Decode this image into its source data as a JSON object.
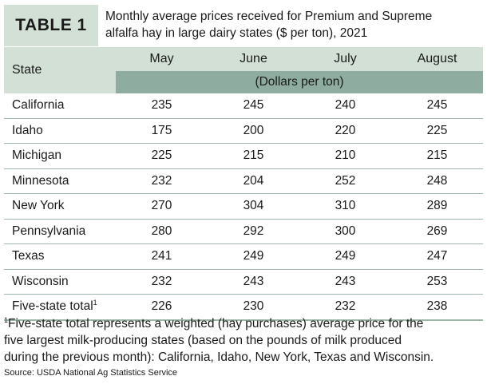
{
  "table_label": "TABLE 1",
  "caption_line1": "Monthly average prices received for Premium and Supreme",
  "caption_line2": "alfalfa hay in large dairy states ($ per ton), 2021",
  "columns": {
    "state": "State",
    "months": [
      "May",
      "June",
      "July",
      "August"
    ],
    "unit_label": "(Dollars per ton)"
  },
  "rows": [
    {
      "state": "California",
      "values": [
        "235",
        "245",
        "240",
        "245"
      ]
    },
    {
      "state": "Idaho",
      "values": [
        "175",
        "200",
        "220",
        "225"
      ]
    },
    {
      "state": "Michigan",
      "values": [
        "225",
        "215",
        "210",
        "215"
      ]
    },
    {
      "state": "Minnesota",
      "values": [
        "232",
        "204",
        "252",
        "248"
      ]
    },
    {
      "state": "New York",
      "values": [
        "270",
        "304",
        "310",
        "289"
      ]
    },
    {
      "state": "Pennsylvania",
      "values": [
        "280",
        "292",
        "300",
        "269"
      ]
    },
    {
      "state": "Texas",
      "values": [
        "241",
        "249",
        "249",
        "247"
      ]
    },
    {
      "state": "Wisconsin",
      "values": [
        "232",
        "243",
        "243",
        "253"
      ]
    },
    {
      "state": "Five-state total",
      "marker": "1",
      "values": [
        "226",
        "230",
        "232",
        "238"
      ]
    }
  ],
  "footnote": {
    "marker": "1",
    "line1": "Five-state total represents a weighted (hay purchases) average price for the",
    "line2": "five largest milk-producing states (based on the pounds of milk produced",
    "line3": "during the previous month): California, Idaho, New York, Texas and Wisconsin."
  },
  "source": "Source: USDA National Ag Statistics Service",
  "colors": {
    "header_bg": "#d2e0d5",
    "unit_bar_bg": "#8eada0",
    "rule": "#9fb7a8"
  }
}
